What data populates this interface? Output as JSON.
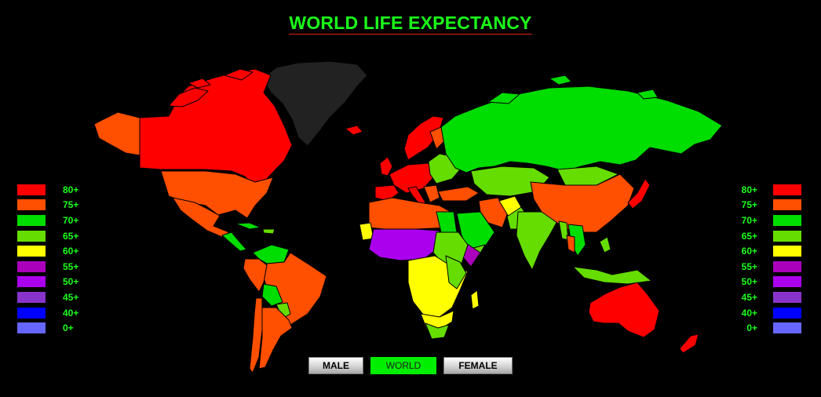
{
  "title": "WORLD LIFE EXPECTANCY",
  "legend": [
    {
      "label": "80+",
      "color": "#ff0000"
    },
    {
      "label": "75+",
      "color": "#ff4f00"
    },
    {
      "label": "70+",
      "color": "#00dd00"
    },
    {
      "label": "65+",
      "color": "#66dd00"
    },
    {
      "label": "60+",
      "color": "#ffff00"
    },
    {
      "label": "55+",
      "color": "#aa00bb"
    },
    {
      "label": "50+",
      "color": "#aa00ee"
    },
    {
      "label": "45+",
      "color": "#8833cc"
    },
    {
      "label": "40+",
      "color": "#0000ff"
    },
    {
      "label": "0+",
      "color": "#6666ff"
    }
  ],
  "no_data_color": "#222222",
  "buttons": {
    "male": "MALE",
    "world": "WORLD",
    "female": "FEMALE",
    "selected": "world"
  }
}
